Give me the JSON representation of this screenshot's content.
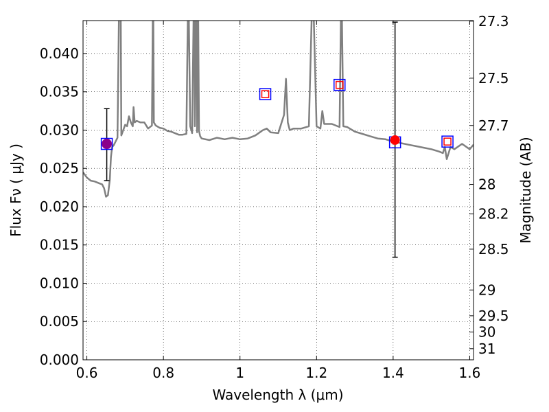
{
  "chart_data": {
    "type": "line",
    "xlabel": "Wavelength  λ (μm)",
    "ylabel": "Flux  Fν  ( μJy )",
    "y2label": "Magnitude (AB)",
    "xlim": [
      0.59,
      1.61
    ],
    "ylim": [
      0.0,
      0.0443
    ],
    "grid": true,
    "x_ticks": [
      {
        "value": 0.6,
        "label": "0.6"
      },
      {
        "value": 0.8,
        "label": "0.8"
      },
      {
        "value": 1.0,
        "label": "1"
      },
      {
        "value": 1.2,
        "label": "1.2"
      },
      {
        "value": 1.4,
        "label": "1.4"
      },
      {
        "value": 1.6,
        "label": "1.6"
      }
    ],
    "y_ticks": [
      {
        "value": 0.0,
        "label": "0.000"
      },
      {
        "value": 0.005,
        "label": "0.005"
      },
      {
        "value": 0.01,
        "label": "0.010"
      },
      {
        "value": 0.015,
        "label": "0.015"
      },
      {
        "value": 0.02,
        "label": "0.020"
      },
      {
        "value": 0.025,
        "label": "0.025"
      },
      {
        "value": 0.03,
        "label": "0.030"
      },
      {
        "value": 0.035,
        "label": "0.035"
      },
      {
        "value": 0.04,
        "label": "0.040"
      }
    ],
    "y2_ticks": [
      {
        "flux": 0.04423,
        "label": "27.3"
      },
      {
        "flux": 0.03678,
        "label": "27.5"
      },
      {
        "flux": 0.0306,
        "label": "27.7"
      },
      {
        "flux": 0.02291,
        "label": "28"
      },
      {
        "flux": 0.01905,
        "label": "28.2"
      },
      {
        "flux": 0.01445,
        "label": "28.5"
      },
      {
        "flux": 0.00912,
        "label": "29"
      },
      {
        "flux": 0.00575,
        "label": "29.5"
      },
      {
        "flux": 0.00363,
        "label": "30"
      },
      {
        "flux": 0.00145,
        "label": "31"
      }
    ],
    "series": [
      {
        "color": "#808080",
        "x": [
          0.59,
          0.6,
          0.61,
          0.62,
          0.63,
          0.64,
          0.645,
          0.65,
          0.655,
          0.66,
          0.663,
          0.666,
          0.67,
          0.675,
          0.68,
          0.685,
          0.688,
          0.69,
          0.695,
          0.7,
          0.705,
          0.71,
          0.715,
          0.72,
          0.722,
          0.725,
          0.73,
          0.74,
          0.75,
          0.76,
          0.77,
          0.773,
          0.775,
          0.78,
          0.79,
          0.8,
          0.81,
          0.82,
          0.83,
          0.84,
          0.85,
          0.86,
          0.865,
          0.87,
          0.875,
          0.88,
          0.882,
          0.885,
          0.888,
          0.89,
          0.893,
          0.896,
          0.9,
          0.92,
          0.94,
          0.96,
          0.98,
          1.0,
          1.02,
          1.04,
          1.06,
          1.07,
          1.08,
          1.1,
          1.115,
          1.12,
          1.125,
          1.13,
          1.14,
          1.16,
          1.18,
          1.19,
          1.2,
          1.21,
          1.215,
          1.22,
          1.24,
          1.26,
          1.265,
          1.27,
          1.28,
          1.3,
          1.32,
          1.34,
          1.36,
          1.38,
          1.4,
          1.42,
          1.44,
          1.46,
          1.48,
          1.5,
          1.52,
          1.53,
          1.535,
          1.54,
          1.55,
          1.56,
          1.58,
          1.6,
          1.61
        ],
        "y": [
          0.0245,
          0.0238,
          0.0234,
          0.0233,
          0.0231,
          0.0229,
          0.0224,
          0.0213,
          0.0215,
          0.0235,
          0.0265,
          0.0278,
          0.028,
          0.0285,
          0.029,
          0.05,
          0.05,
          0.0293,
          0.03,
          0.0307,
          0.0305,
          0.0318,
          0.031,
          0.0305,
          0.033,
          0.031,
          0.0312,
          0.031,
          0.031,
          0.0302,
          0.0306,
          0.05,
          0.031,
          0.0306,
          0.0303,
          0.0302,
          0.0299,
          0.0298,
          0.0296,
          0.0294,
          0.0294,
          0.0295,
          0.05,
          0.0305,
          0.0296,
          0.05,
          0.0305,
          0.05,
          0.0297,
          0.05,
          0.0299,
          0.0292,
          0.0289,
          0.0287,
          0.029,
          0.0288,
          0.029,
          0.0288,
          0.0289,
          0.0293,
          0.03,
          0.0302,
          0.0297,
          0.0296,
          0.032,
          0.0367,
          0.031,
          0.03,
          0.0302,
          0.0302,
          0.0305,
          0.05,
          0.0305,
          0.0302,
          0.0325,
          0.0308,
          0.0308,
          0.0304,
          0.05,
          0.0305,
          0.0304,
          0.0298,
          0.0295,
          0.0292,
          0.0289,
          0.0288,
          0.0285,
          0.0283,
          0.0281,
          0.0279,
          0.0277,
          0.0275,
          0.0272,
          0.027,
          0.0278,
          0.0262,
          0.0278,
          0.0275,
          0.0282,
          0.0275,
          0.0281
        ]
      }
    ],
    "points": [
      {
        "x": 0.652,
        "y": 0.0282,
        "yerr_low": 0.0234,
        "yerr_high": 0.0328,
        "marker": "square",
        "face": "none",
        "edge": "#0000ff",
        "size": 16
      },
      {
        "x": 0.652,
        "y": 0.0282,
        "marker": "circle",
        "face": "#8b008b",
        "edge": "#8b008b",
        "size": 14
      },
      {
        "x": 1.066,
        "y": 0.0347,
        "marker": "square",
        "face": "none",
        "edge": "#0000ff",
        "size": 16
      },
      {
        "x": 1.066,
        "y": 0.0347,
        "marker": "square",
        "face": "none",
        "edge": "#ff0000",
        "size": 10
      },
      {
        "x": 1.26,
        "y": 0.0359,
        "marker": "square",
        "face": "none",
        "edge": "#0000ff",
        "size": 16
      },
      {
        "x": 1.26,
        "y": 0.0359,
        "marker": "square",
        "face": "none",
        "edge": "#ff0000",
        "size": 10
      },
      {
        "x": 1.405,
        "y": 0.0284,
        "yerr_low": 0.0134,
        "yerr_high": 0.0441,
        "marker": "square",
        "face": "none",
        "edge": "#0000ff",
        "size": 16
      },
      {
        "x": 1.405,
        "y": 0.0287,
        "marker": "circle",
        "face": "#ff0000",
        "edge": "#ff0000",
        "size": 13
      },
      {
        "x": 1.542,
        "y": 0.0285,
        "marker": "square",
        "face": "none",
        "edge": "#0000ff",
        "size": 16
      },
      {
        "x": 1.542,
        "y": 0.0285,
        "marker": "square",
        "face": "none",
        "edge": "#ff0000",
        "size": 10
      }
    ]
  }
}
